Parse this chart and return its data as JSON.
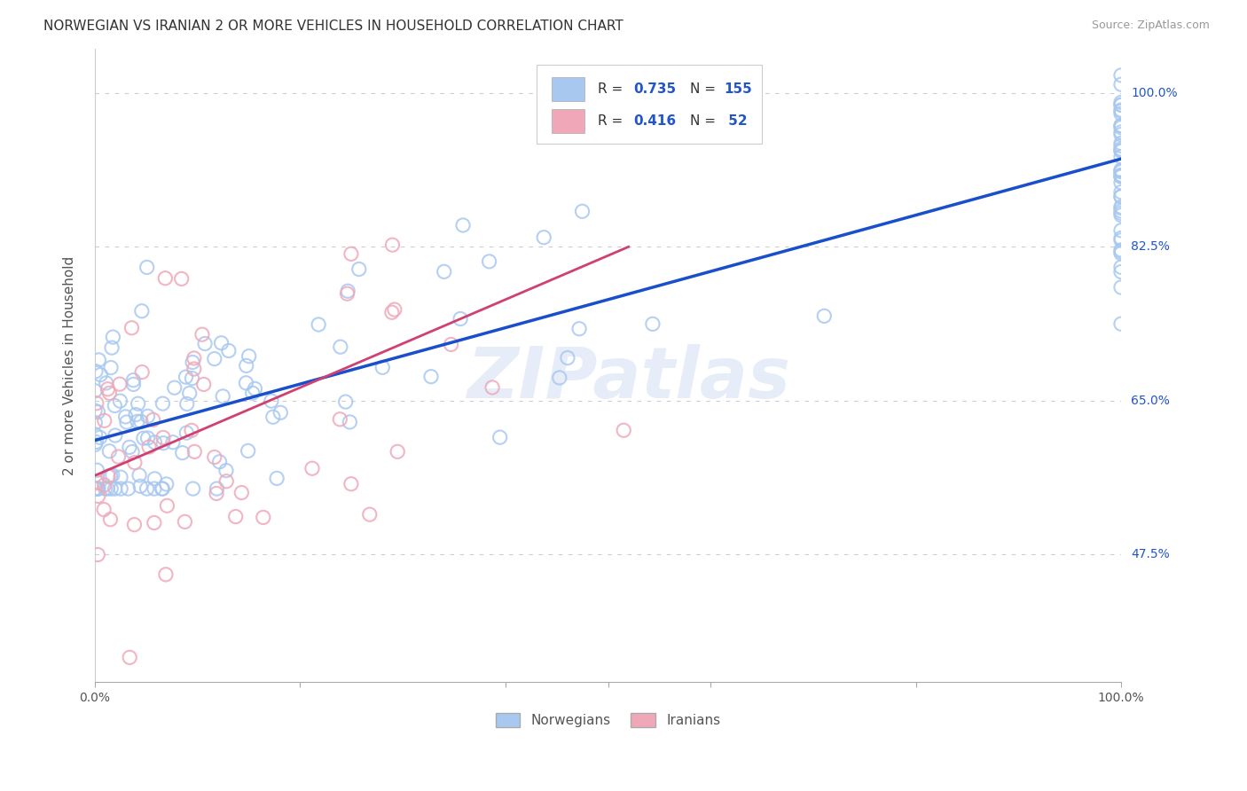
{
  "title": "NORWEGIAN VS IRANIAN 2 OR MORE VEHICLES IN HOUSEHOLD CORRELATION CHART",
  "source": "Source: ZipAtlas.com",
  "ylabel": "2 or more Vehicles in Household",
  "ytick_labels": [
    "100.0%",
    "82.5%",
    "65.0%",
    "47.5%"
  ],
  "ytick_values": [
    1.0,
    0.825,
    0.65,
    0.475
  ],
  "xlim": [
    0.0,
    1.0
  ],
  "ylim": [
    0.33,
    1.05
  ],
  "norwegian_color": "#a8c8f0",
  "norwegian_edge_color": "#a8c8f0",
  "iranian_color": "#f0a8b8",
  "iranian_edge_color": "#f0a8b8",
  "norwegian_R": 0.735,
  "norwegian_N": 155,
  "iranian_R": 0.416,
  "iranian_N": 52,
  "legend_label_norwegian": "Norwegians",
  "legend_label_iranian": "Iranians",
  "background_color": "#ffffff",
  "grid_color": "#cccccc",
  "norwegian_line_color": "#1a4fcc",
  "iranian_line_color": "#d04070",
  "watermark": "ZIPatlas",
  "nor_line_x0": 0.0,
  "nor_line_y0": 0.605,
  "nor_line_x1": 1.0,
  "nor_line_y1": 0.925,
  "ira_line_x0": 0.0,
  "ira_line_y0": 0.565,
  "ira_line_x1": 0.52,
  "ira_line_y1": 0.825
}
